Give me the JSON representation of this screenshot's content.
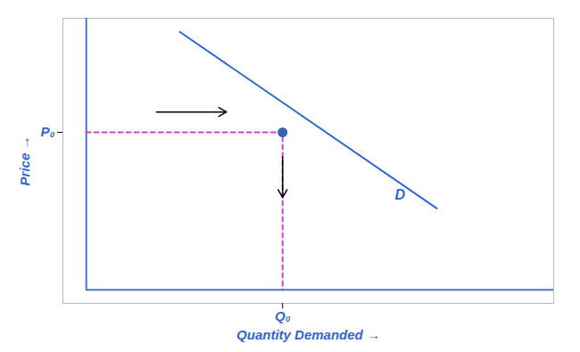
{
  "chart_data": {
    "type": "line",
    "xlabel": "Quantity Demanded",
    "ylabel": "Price",
    "color": "#3366cc",
    "xlim": [
      -0.5,
      10
    ],
    "ylim": [
      -0.5,
      10
    ],
    "xticks": [
      {
        "value": 4.2,
        "label": "Q₀"
      }
    ],
    "yticks": [
      {
        "value": 5.8,
        "label": "P₀"
      }
    ],
    "grid": false,
    "series": [
      {
        "type": "line",
        "line_style": "solid",
        "color": "#4477cc",
        "x": [
          0,
          0,
          10
        ],
        "values": [
          10,
          0,
          0
        ]
      },
      {
        "type": "line",
        "line_style": "solid",
        "color": "#3366cc",
        "x": [
          2.0,
          7.5
        ],
        "values": [
          9.5,
          3.0
        ]
      },
      {
        "type": "line",
        "line_style": "dashed",
        "color": "#cc44cc",
        "x": [
          0,
          4.2,
          4.2
        ],
        "values": [
          5.8,
          5.8,
          0
        ]
      },
      {
        "type": "scatter",
        "marker": "circle",
        "color": "#3366aa",
        "x": [
          4.2
        ],
        "values": [
          5.8
        ]
      }
    ],
    "arrows": [
      {
        "x1": 1.5,
        "y1": 6.55,
        "x2": 3.0,
        "y2": 6.55,
        "color": "black"
      },
      {
        "x1": 4.2,
        "y1": 4.9,
        "x2": 4.2,
        "y2": 3.4,
        "color": "black"
      }
    ],
    "annotations": [
      {
        "text": "D",
        "x": 6.6,
        "y": 3.5
      }
    ]
  }
}
